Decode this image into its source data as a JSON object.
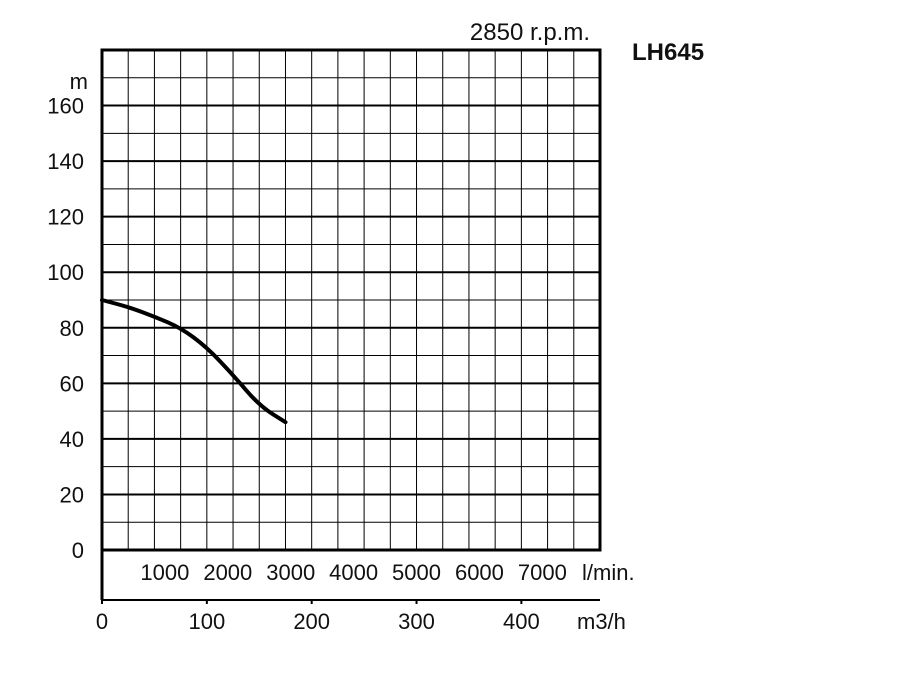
{
  "chart_data": {
    "type": "line",
    "speed_label": "2850 r.p.m.",
    "model": "LH645",
    "ylabel": "m",
    "ylim": [
      0,
      180
    ],
    "yticks": [
      0,
      20,
      40,
      60,
      80,
      100,
      120,
      140,
      160
    ],
    "y_grid_step": 10,
    "x_flow_lmin": {
      "unit": "l/min.",
      "ticks": [
        "1000",
        "2000",
        "3000",
        "4000",
        "5000",
        "6000",
        "7000"
      ],
      "tick_values": [
        1000,
        2000,
        3000,
        4000,
        5000,
        6000,
        7000
      ]
    },
    "x_flow_m3h": {
      "unit": "m3/h",
      "xlim": [
        0,
        475
      ],
      "ticks": [
        "0",
        "100",
        "200",
        "300",
        "400"
      ],
      "tick_values": [
        0,
        100,
        200,
        300,
        400
      ],
      "grid_step": 25
    },
    "grid": true,
    "series": [
      {
        "x": [
          0,
          25,
          50,
          75,
          100,
          125,
          150,
          175
        ],
        "y": [
          90,
          87.5,
          84,
          80,
          73,
          63,
          52,
          46
        ]
      }
    ]
  },
  "colors": {
    "axis": "#000000",
    "curve": "#000000"
  }
}
